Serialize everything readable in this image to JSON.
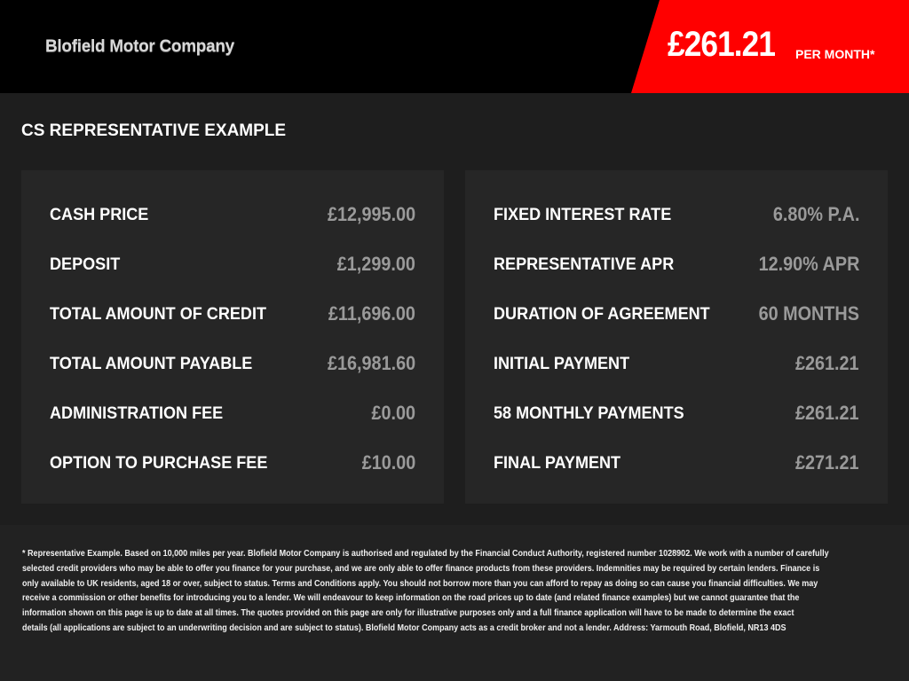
{
  "header": {
    "logo": "Blofield Motor Company",
    "price": "£261.21",
    "per_month": "PER MONTH*",
    "accent": "#ff0000"
  },
  "title": "CS REPRESENTATIVE EXAMPLE",
  "left": [
    {
      "label": "CASH PRICE",
      "value": "£12,995.00"
    },
    {
      "label": "DEPOSIT",
      "value": "£1,299.00"
    },
    {
      "label": "TOTAL AMOUNT OF CREDIT",
      "value": "£11,696.00"
    },
    {
      "label": "TOTAL AMOUNT PAYABLE",
      "value": "£16,981.60"
    },
    {
      "label": "ADMINISTRATION FEE",
      "value": "£0.00"
    },
    {
      "label": "OPTION TO PURCHASE FEE",
      "value": "£10.00"
    }
  ],
  "right": [
    {
      "label": "FIXED INTEREST RATE",
      "value": "6.80% P.A."
    },
    {
      "label": "REPRESENTATIVE APR",
      "value": "12.90% APR"
    },
    {
      "label": "DURATION OF AGREEMENT",
      "value": "60 MONTHS"
    },
    {
      "label": "INITIAL PAYMENT",
      "value": "£261.21"
    },
    {
      "label": "58 MONTHLY PAYMENTS",
      "value": "£261.21"
    },
    {
      "label": "FINAL PAYMENT",
      "value": "£271.21"
    }
  ],
  "disclaimer": [
    "* Representative Example. Based on 10,000 miles per year. Blofield Motor Company is authorised and regulated by the Financial Conduct Authority, registered number 1028902. We work with a number of carefully",
    "selected credit providers who may be able to offer you finance for your purchase, and we are only able to offer finance products from these providers. Indemnities may be required by certain lenders. Finance is",
    "only available to UK residents, aged 18 or over, subject to status. Terms and Conditions apply. You should not borrow more than you can afford to repay as doing so can cause you financial difficulties. We may",
    "receive a commission or other benefits for introducing you to a lender. We will endeavour to keep information on the road prices up to date (and related finance examples) but we cannot guarantee that the",
    "information shown on this page is up to date at all times. The quotes provided on this page are only for illustrative purposes only and a full finance application will have to be made to determine the exact",
    "details (all applications are subject to an underwriting decision and are subject to status). Blofield Motor Company acts as a credit broker and not a lender. Address: Yarmouth Road, Blofield, NR13 4DS"
  ]
}
